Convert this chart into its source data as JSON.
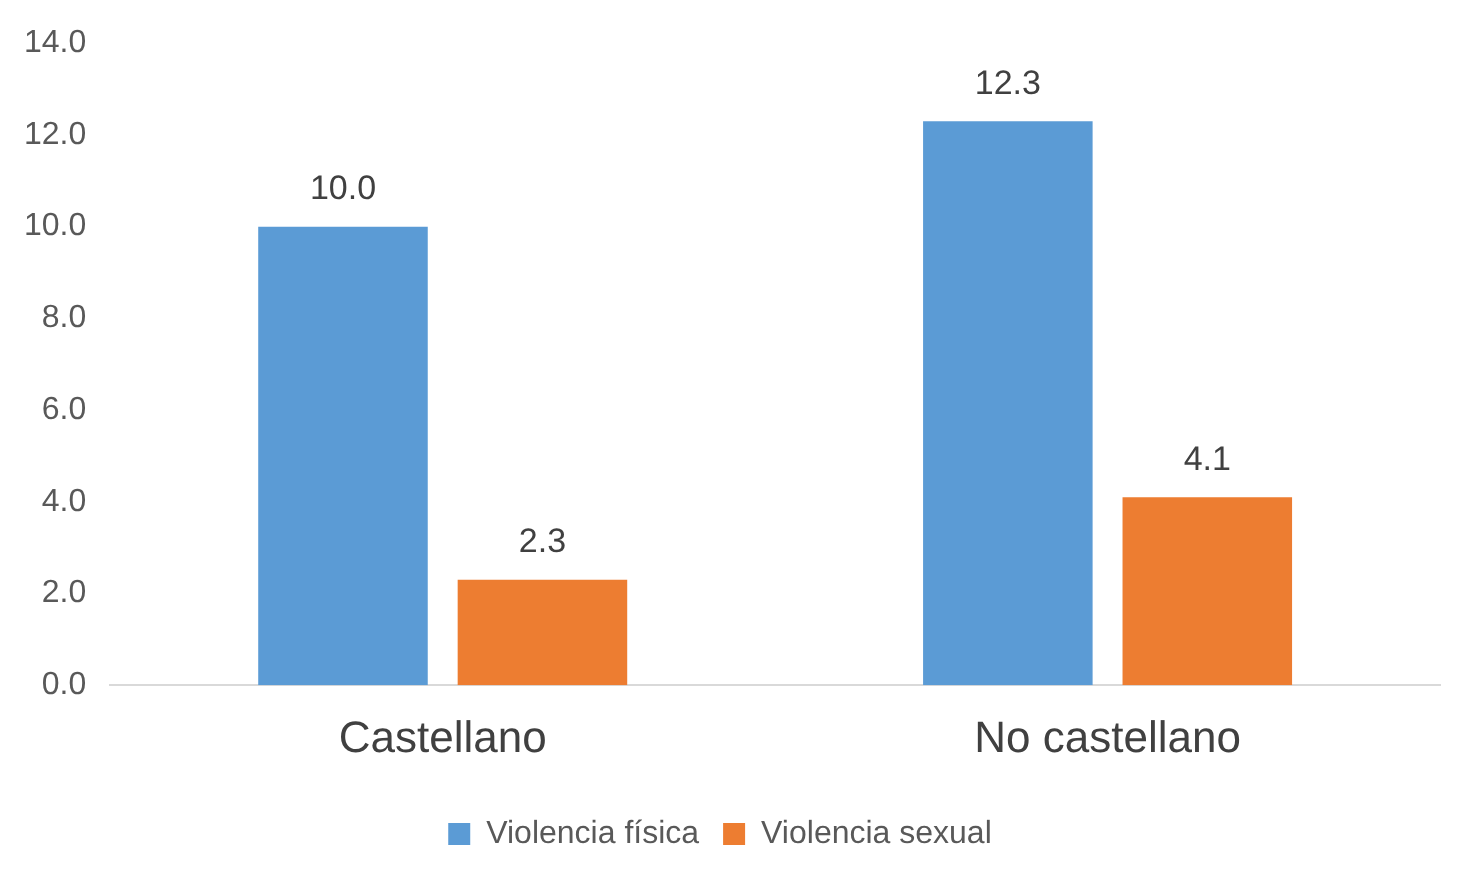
{
  "chart_data": {
    "type": "bar",
    "categories": [
      "Castellano",
      "No castellano"
    ],
    "series": [
      {
        "name": "Violencia física",
        "color": "#5b9bd5",
        "values": [
          10.0,
          12.3
        ],
        "value_labels": [
          "10.0",
          "12.3"
        ]
      },
      {
        "name": "Violencia sexual",
        "color": "#ed7d31",
        "values": [
          2.3,
          4.1
        ],
        "value_labels": [
          "2.3",
          "4.1"
        ]
      }
    ],
    "ylim": [
      0,
      14
    ],
    "yticks": [
      {
        "value": 0,
        "label": "0.0"
      },
      {
        "value": 2,
        "label": "2.0"
      },
      {
        "value": 4,
        "label": "4.0"
      },
      {
        "value": 6,
        "label": "6.0"
      },
      {
        "value": 8,
        "label": "8.0"
      },
      {
        "value": 10,
        "label": "10.0"
      },
      {
        "value": 12,
        "label": "12.0"
      },
      {
        "value": 14,
        "label": "14.0"
      }
    ],
    "grid": false,
    "legend": "bottom"
  }
}
